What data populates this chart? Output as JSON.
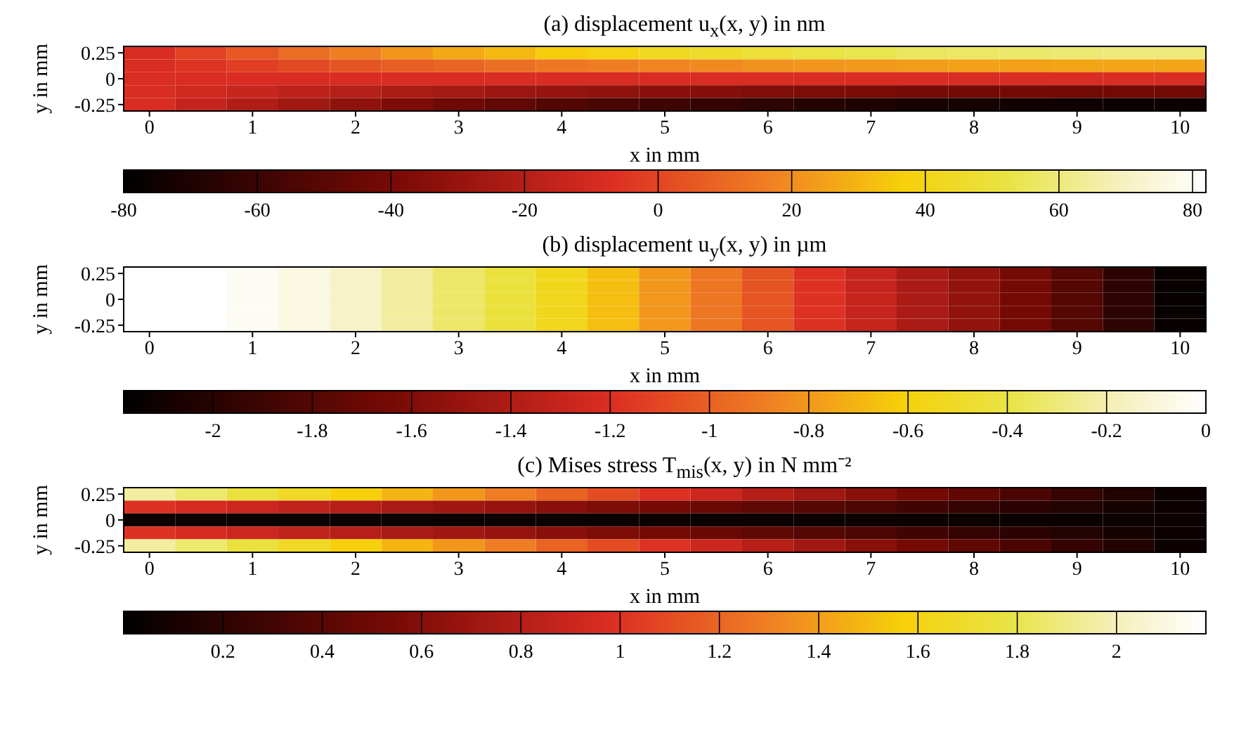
{
  "chart_data": [
    {
      "type": "heatmap",
      "title": "(a) displacement u$_{x}$(x, y) in nm",
      "xlabel": "x in mm",
      "ylabel": "y in mm",
      "categories": [
        "0",
        null,
        "1",
        null,
        "2",
        null,
        "3",
        null,
        "4",
        null,
        "5",
        null,
        "6",
        null,
        "7",
        null,
        "8",
        null,
        "9",
        null,
        "10"
      ],
      "y_categories": [
        "0.25",
        null,
        "0",
        null,
        "-0.25"
      ],
      "clim": [
        -80,
        82
      ],
      "cticks": [
        -80,
        -60,
        -40,
        -20,
        0,
        20,
        40,
        60,
        80
      ],
      "cells": [
        [
          -8,
          -1,
          5,
          11,
          16,
          22,
          27,
          31,
          36,
          39,
          43,
          46,
          49,
          52,
          54,
          56,
          57,
          58,
          59,
          60,
          60
        ],
        [
          -8,
          -5,
          -2,
          1,
          4,
          7,
          9,
          12,
          14,
          16,
          18,
          19,
          21,
          22,
          23,
          24,
          25,
          25,
          26,
          26,
          26
        ],
        [
          -8,
          -8,
          -8,
          -8,
          -8,
          -8,
          -8,
          -8,
          -8,
          -8,
          -8,
          -8,
          -8,
          -8,
          -8,
          -8,
          -8,
          -8,
          -8,
          -8,
          -8
        ],
        [
          -8,
          -11,
          -14,
          -17,
          -20,
          -23,
          -25,
          -28,
          -30,
          -32,
          -34,
          -35,
          -37,
          -38,
          -39,
          -40,
          -41,
          -41,
          -42,
          -42,
          -42
        ],
        [
          -8,
          -15,
          -21,
          -27,
          -32,
          -38,
          -43,
          -47,
          -52,
          -55,
          -59,
          -62,
          -65,
          -68,
          -70,
          -72,
          -73,
          -74,
          -75,
          -76,
          -76
        ]
      ]
    },
    {
      "type": "heatmap",
      "title": "(b) displacement u$_{y}$(x, y) in µm",
      "xlabel": "x in mm",
      "ylabel": "y in mm",
      "categories": [
        "0",
        null,
        "1",
        null,
        "2",
        null,
        "3",
        null,
        "4",
        null,
        "5",
        null,
        "6",
        null,
        "7",
        null,
        "8",
        null,
        "9",
        null,
        "10"
      ],
      "y_categories": [
        "0.25",
        null,
        "0",
        null,
        "-0.25"
      ],
      "clim": [
        -2.18,
        0
      ],
      "cticks": [
        -2,
        -1.8,
        -1.6,
        -1.4,
        -1.2,
        -1,
        -0.8,
        -0.6,
        -0.4,
        -0.2,
        0
      ],
      "cells": [
        [
          0,
          0,
          -0.03,
          -0.08,
          -0.15,
          -0.23,
          -0.33,
          -0.43,
          -0.55,
          -0.67,
          -0.8,
          -0.92,
          -1.05,
          -1.18,
          -1.3,
          -1.42,
          -1.52,
          -1.65,
          -1.8,
          -1.98,
          -2.15
        ],
        [
          0,
          0,
          -0.03,
          -0.08,
          -0.15,
          -0.23,
          -0.33,
          -0.43,
          -0.55,
          -0.67,
          -0.8,
          -0.92,
          -1.05,
          -1.18,
          -1.3,
          -1.42,
          -1.52,
          -1.65,
          -1.8,
          -1.98,
          -2.15
        ],
        [
          0,
          0,
          -0.03,
          -0.08,
          -0.15,
          -0.23,
          -0.33,
          -0.43,
          -0.55,
          -0.67,
          -0.8,
          -0.92,
          -1.05,
          -1.18,
          -1.3,
          -1.42,
          -1.52,
          -1.65,
          -1.8,
          -1.98,
          -2.15
        ],
        [
          0,
          0,
          -0.03,
          -0.08,
          -0.15,
          -0.23,
          -0.33,
          -0.43,
          -0.55,
          -0.67,
          -0.8,
          -0.92,
          -1.05,
          -1.18,
          -1.3,
          -1.42,
          -1.52,
          -1.65,
          -1.8,
          -1.98,
          -2.15
        ],
        [
          0,
          0,
          -0.03,
          -0.08,
          -0.15,
          -0.23,
          -0.33,
          -0.43,
          -0.55,
          -0.67,
          -0.8,
          -0.92,
          -1.05,
          -1.18,
          -1.3,
          -1.42,
          -1.52,
          -1.65,
          -1.8,
          -1.98,
          -2.15
        ]
      ]
    },
    {
      "type": "heatmap",
      "title": "(c) Mises stress T$_{mis}$(x, y) in N mm⁻²",
      "xlabel": "x in mm",
      "ylabel": "y in mm",
      "categories": [
        "0",
        null,
        "1",
        null,
        "2",
        null,
        "3",
        null,
        "4",
        null,
        "5",
        null,
        "6",
        null,
        "7",
        null,
        "8",
        null,
        "9",
        null,
        "10"
      ],
      "y_categories": [
        "0.25",
        null,
        "0",
        null,
        "-0.25"
      ],
      "clim": [
        0,
        2.18
      ],
      "cticks": [
        0.2,
        0.4,
        0.6,
        0.8,
        1,
        1.2,
        1.4,
        1.6,
        1.8,
        2
      ],
      "cells": [
        [
          1.95,
          1.86,
          1.76,
          1.67,
          1.57,
          1.48,
          1.38,
          1.29,
          1.19,
          1.1,
          1,
          0.91,
          0.81,
          0.72,
          0.62,
          0.53,
          0.43,
          0.34,
          0.24,
          0.15,
          0.05
        ],
        [
          1,
          0.95,
          0.91,
          0.86,
          0.81,
          0.76,
          0.72,
          0.67,
          0.62,
          0.57,
          0.53,
          0.48,
          0.43,
          0.38,
          0.34,
          0.29,
          0.24,
          0.19,
          0.15,
          0.1,
          0.05
        ],
        [
          0.05,
          0.05,
          0.05,
          0.05,
          0.05,
          0.05,
          0.05,
          0.05,
          0.05,
          0.05,
          0.05,
          0.05,
          0.05,
          0.05,
          0.05,
          0.05,
          0.05,
          0.05,
          0.05,
          0.05,
          0.05
        ],
        [
          1,
          0.95,
          0.91,
          0.86,
          0.81,
          0.76,
          0.72,
          0.67,
          0.62,
          0.57,
          0.53,
          0.48,
          0.43,
          0.38,
          0.34,
          0.29,
          0.24,
          0.19,
          0.15,
          0.1,
          0.05
        ],
        [
          1.95,
          1.86,
          1.76,
          1.67,
          1.57,
          1.48,
          1.38,
          1.29,
          1.19,
          1.1,
          1,
          0.91,
          0.81,
          0.72,
          0.62,
          0.53,
          0.43,
          0.34,
          0.24,
          0.15,
          0.05
        ]
      ]
    }
  ]
}
